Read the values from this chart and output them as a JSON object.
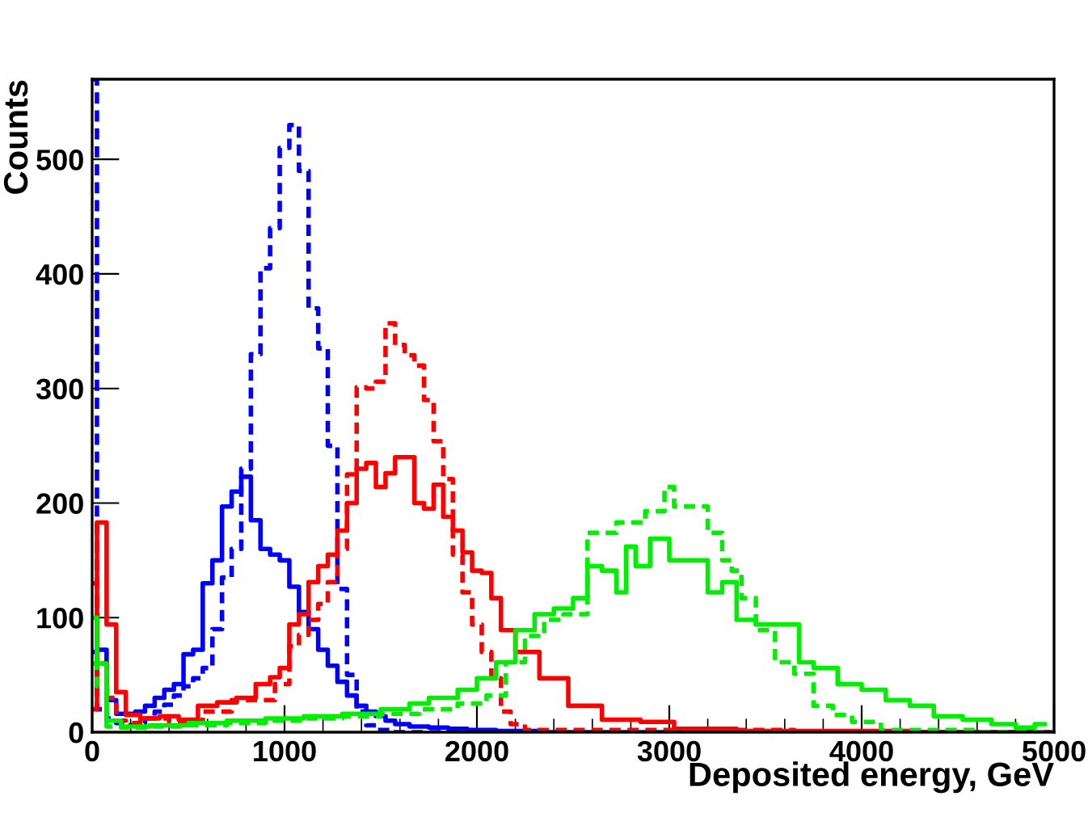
{
  "chart_data": {
    "type": "step",
    "xlabel": "Deposited energy, GeV",
    "ylabel": "Counts",
    "xlim": [
      0,
      5000
    ],
    "ylim": [
      0,
      570
    ],
    "xticks": [
      0,
      1000,
      2000,
      3000,
      4000,
      5000
    ],
    "yticks": [
      0,
      100,
      200,
      300,
      400,
      500
    ],
    "grid": false,
    "series": [
      {
        "color": "#0000ff",
        "line_style": "solid",
        "x": [
          0,
          50,
          100,
          150,
          200,
          250,
          300,
          350,
          400,
          450,
          500,
          550,
          600,
          650,
          700,
          750,
          800,
          850,
          900,
          950,
          1000,
          1050,
          1100,
          1150,
          1200,
          1250,
          1300,
          1350,
          1400,
          1450,
          1500,
          1550,
          1600,
          1700,
          1800,
          1900,
          2000,
          2200,
          2500,
          5000
        ],
        "values": [
          70,
          72,
          28,
          16,
          16,
          18,
          23,
          30,
          37,
          42,
          68,
          72,
          130,
          150,
          197,
          210,
          223,
          185,
          160,
          155,
          150,
          127,
          105,
          90,
          72,
          58,
          44,
          32,
          23,
          18,
          14,
          10,
          7,
          5,
          4,
          3,
          2,
          1,
          0,
          0
        ]
      },
      {
        "color": "#0000ff",
        "line_style": "dashed",
        "x": [
          0,
          50,
          100,
          150,
          200,
          250,
          300,
          350,
          400,
          450,
          500,
          550,
          600,
          650,
          700,
          750,
          800,
          850,
          900,
          950,
          1000,
          1050,
          1100,
          1150,
          1200,
          1250,
          1300,
          1350,
          1400,
          1450,
          1500,
          1600,
          5000
        ],
        "values": [
          570,
          20,
          12,
          8,
          6,
          8,
          12,
          18,
          24,
          32,
          40,
          47,
          56,
          90,
          135,
          160,
          230,
          330,
          405,
          440,
          510,
          530,
          490,
          370,
          335,
          250,
          125,
          50,
          18,
          6,
          2,
          0,
          0
        ]
      },
      {
        "color": "#ff0000",
        "line_style": "solid",
        "x": [
          0,
          50,
          100,
          150,
          200,
          300,
          400,
          500,
          600,
          700,
          800,
          900,
          950,
          1000,
          1050,
          1100,
          1150,
          1200,
          1250,
          1300,
          1350,
          1400,
          1450,
          1500,
          1550,
          1600,
          1650,
          1700,
          1750,
          1800,
          1850,
          1900,
          1950,
          2000,
          2050,
          2100,
          2150,
          2250,
          2400,
          2550,
          2750,
          2950,
          3100,
          3600,
          5000
        ],
        "values": [
          20,
          183,
          94,
          35,
          15,
          12,
          14,
          11,
          23,
          26,
          30,
          42,
          48,
          56,
          94,
          103,
          131,
          145,
          155,
          176,
          200,
          230,
          235,
          214,
          226,
          240,
          240,
          200,
          195,
          216,
          188,
          176,
          157,
          141,
          139,
          117,
          89,
          70,
          47,
          23,
          11,
          9,
          3,
          1,
          0
        ]
      },
      {
        "color": "#ff0000",
        "line_style": "dashed",
        "x": [
          0,
          50,
          100,
          150,
          200,
          300,
          500,
          650,
          800,
          900,
          1000,
          1050,
          1100,
          1150,
          1200,
          1250,
          1300,
          1350,
          1400,
          1450,
          1500,
          1550,
          1600,
          1650,
          1700,
          1750,
          1800,
          1850,
          1900,
          1950,
          2000,
          2050,
          2100,
          2150,
          2200,
          2300,
          5000
        ],
        "values": [
          130,
          60,
          30,
          10,
          8,
          12,
          9,
          18,
          28,
          28,
          42,
          75,
          85,
          98,
          112,
          131,
          160,
          225,
          301,
          300,
          306,
          357,
          338,
          329,
          320,
          290,
          254,
          221,
          155,
          122,
          94,
          70,
          47,
          18,
          7,
          2,
          0
        ]
      },
      {
        "color": "#00ee00",
        "line_style": "solid",
        "x": [
          0,
          50,
          100,
          200,
          400,
          600,
          800,
          1000,
          1200,
          1400,
          1600,
          1700,
          1800,
          1850,
          1950,
          2050,
          2150,
          2250,
          2350,
          2450,
          2550,
          2600,
          2700,
          2750,
          2800,
          2850,
          2950,
          3050,
          3150,
          3250,
          3300,
          3400,
          3500,
          3650,
          3700,
          3800,
          3950,
          4050,
          4200,
          4300,
          4450,
          4600,
          4750,
          4850,
          4950
        ],
        "values": [
          100,
          60,
          10,
          5,
          6,
          8,
          10,
          12,
          14,
          16,
          20,
          25,
          30,
          30,
          37,
          47,
          61,
          89,
          103,
          108,
          117,
          145,
          141,
          122,
          162,
          145,
          169,
          150,
          150,
          122,
          131,
          98,
          94,
          94,
          61,
          56,
          42,
          37,
          28,
          23,
          14,
          11,
          7,
          4,
          7
        ]
      },
      {
        "color": "#00ee00",
        "line_style": "dashed",
        "x": [
          0,
          50,
          100,
          200,
          400,
          600,
          800,
          1000,
          1200,
          1400,
          1600,
          1800,
          2000,
          2100,
          2200,
          2300,
          2400,
          2500,
          2650,
          2800,
          2950,
          3000,
          3050,
          3150,
          3250,
          3300,
          3350,
          3400,
          3500,
          3600,
          3700,
          3800,
          3900,
          4000,
          4200,
          5000
        ],
        "values": [
          60,
          40,
          5,
          4,
          5,
          6,
          8,
          10,
          12,
          14,
          16,
          20,
          25,
          32,
          61,
          84,
          98,
          103,
          174,
          183,
          193,
          214,
          197,
          197,
          174,
          150,
          141,
          117,
          89,
          61,
          51,
          23,
          15,
          9,
          2,
          0
        ]
      }
    ]
  }
}
